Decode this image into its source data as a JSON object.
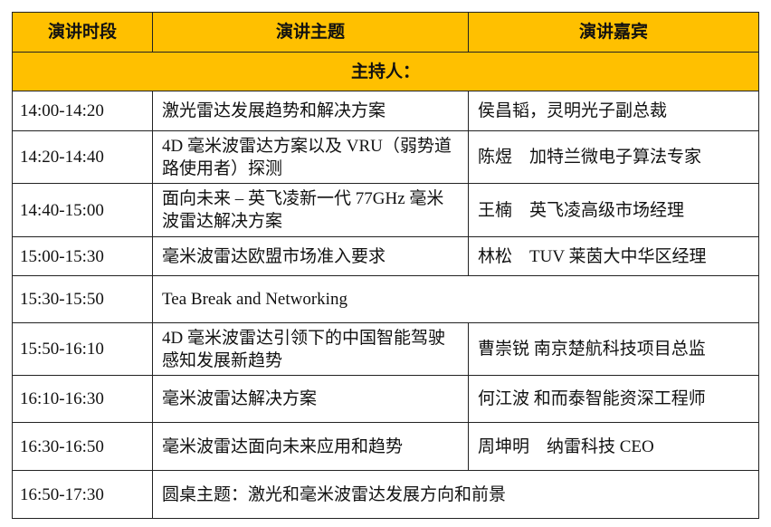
{
  "header": {
    "col_time": "演讲时段",
    "col_topic": "演讲主题",
    "col_speaker": "演讲嘉宾"
  },
  "host_label": "主持人：",
  "rows": [
    {
      "time": "14:00-14:20",
      "topic": "激光雷达发展趋势和解决方案",
      "speaker": "侯昌韬，灵明光子副总裁"
    },
    {
      "time": "14:20-14:40",
      "topic": "4D 毫米波雷达方案以及 VRU（弱势道路使用者）探测",
      "speaker": "陈煜　加特兰微电子算法专家"
    },
    {
      "time": "14:40-15:00",
      "topic": "面向未来 – 英飞凌新一代 77GHz 毫米波雷达解决方案",
      "speaker": "王楠　英飞凌高级市场经理"
    },
    {
      "time": "15:00-15:30",
      "topic": "毫米波雷达欧盟市场准入要求",
      "speaker": "林松　TUV 莱茵大中华区经理"
    },
    {
      "time": "15:30-15:50",
      "topic": "Tea Break and Networking"
    },
    {
      "time": "15:50-16:10",
      "topic": "4D 毫米波雷达引领下的中国智能驾驶感知发展新趋势",
      "speaker": "曹崇锐 南京楚航科技项目总监"
    },
    {
      "time": "16:10-16:30",
      "topic": "毫米波雷达解决方案",
      "speaker": "何江波 和而泰智能资深工程师"
    },
    {
      "time": "16:30-16:50",
      "topic": "毫米波雷达面向未来应用和趋势",
      "speaker": "周坤明　纳雷科技 CEO"
    },
    {
      "time": "16:50-17:30",
      "topic": "圆桌主题：激光和毫米波雷达发展方向和前景"
    }
  ],
  "colors": {
    "header_bg": "#FFC000",
    "border": "#222222"
  }
}
